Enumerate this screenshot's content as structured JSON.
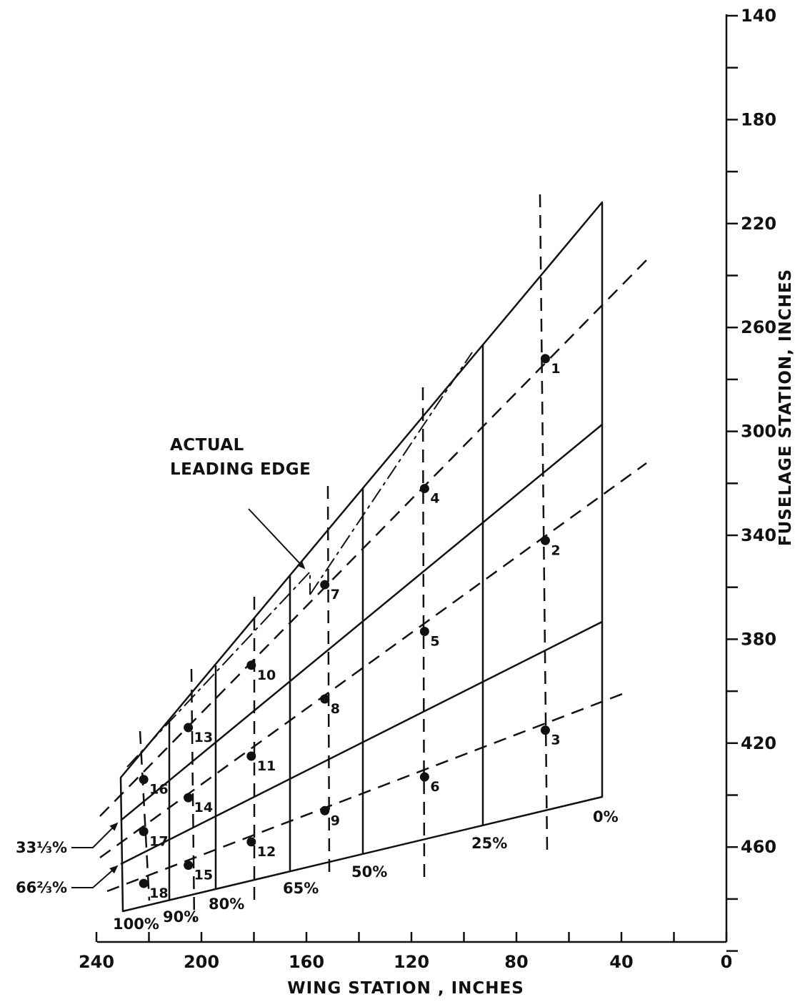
{
  "chart_data": {
    "type": "diagram",
    "xlabel": "WING STATION , INCHES",
    "ylabel": "FUSELAGE STATION, INCHES",
    "xlim": [
      240,
      0
    ],
    "ylim": [
      140,
      500
    ],
    "x_ticks": [
      "240",
      "200",
      "160",
      "120",
      "80",
      "40",
      "0"
    ],
    "y_ticks": [
      "140",
      "180",
      "220",
      "260",
      "300",
      "340",
      "380",
      "420",
      "460"
    ],
    "span_labels": [
      "100%",
      "90%",
      "80%",
      "65%",
      "50%",
      "25%",
      "0%"
    ],
    "chord_labels": [
      "33⅓%",
      "66⅔%"
    ],
    "annotation": [
      "ACTUAL",
      "LEADING EDGE"
    ],
    "points": [
      {
        "label": "1",
        "x": 69,
        "y": 272
      },
      {
        "label": "2",
        "x": 69,
        "y": 342
      },
      {
        "label": "3",
        "x": 69,
        "y": 415
      },
      {
        "label": "4",
        "x": 115,
        "y": 322
      },
      {
        "label": "5",
        "x": 115,
        "y": 377
      },
      {
        "label": "6",
        "x": 115,
        "y": 433
      },
      {
        "label": "7",
        "x": 153,
        "y": 359
      },
      {
        "label": "8",
        "x": 153,
        "y": 403
      },
      {
        "label": "9",
        "x": 153,
        "y": 446
      },
      {
        "label": "10",
        "x": 181,
        "y": 390
      },
      {
        "label": "11",
        "x": 181,
        "y": 425
      },
      {
        "label": "12",
        "x": 181,
        "y": 458
      },
      {
        "label": "13",
        "x": 205,
        "y": 414
      },
      {
        "label": "14",
        "x": 205,
        "y": 441
      },
      {
        "label": "15",
        "x": 205,
        "y": 467
      },
      {
        "label": "16",
        "x": 222,
        "y": 434
      },
      {
        "label": "17",
        "x": 222,
        "y": 454
      },
      {
        "label": "18",
        "x": 222,
        "y": 474
      }
    ]
  }
}
